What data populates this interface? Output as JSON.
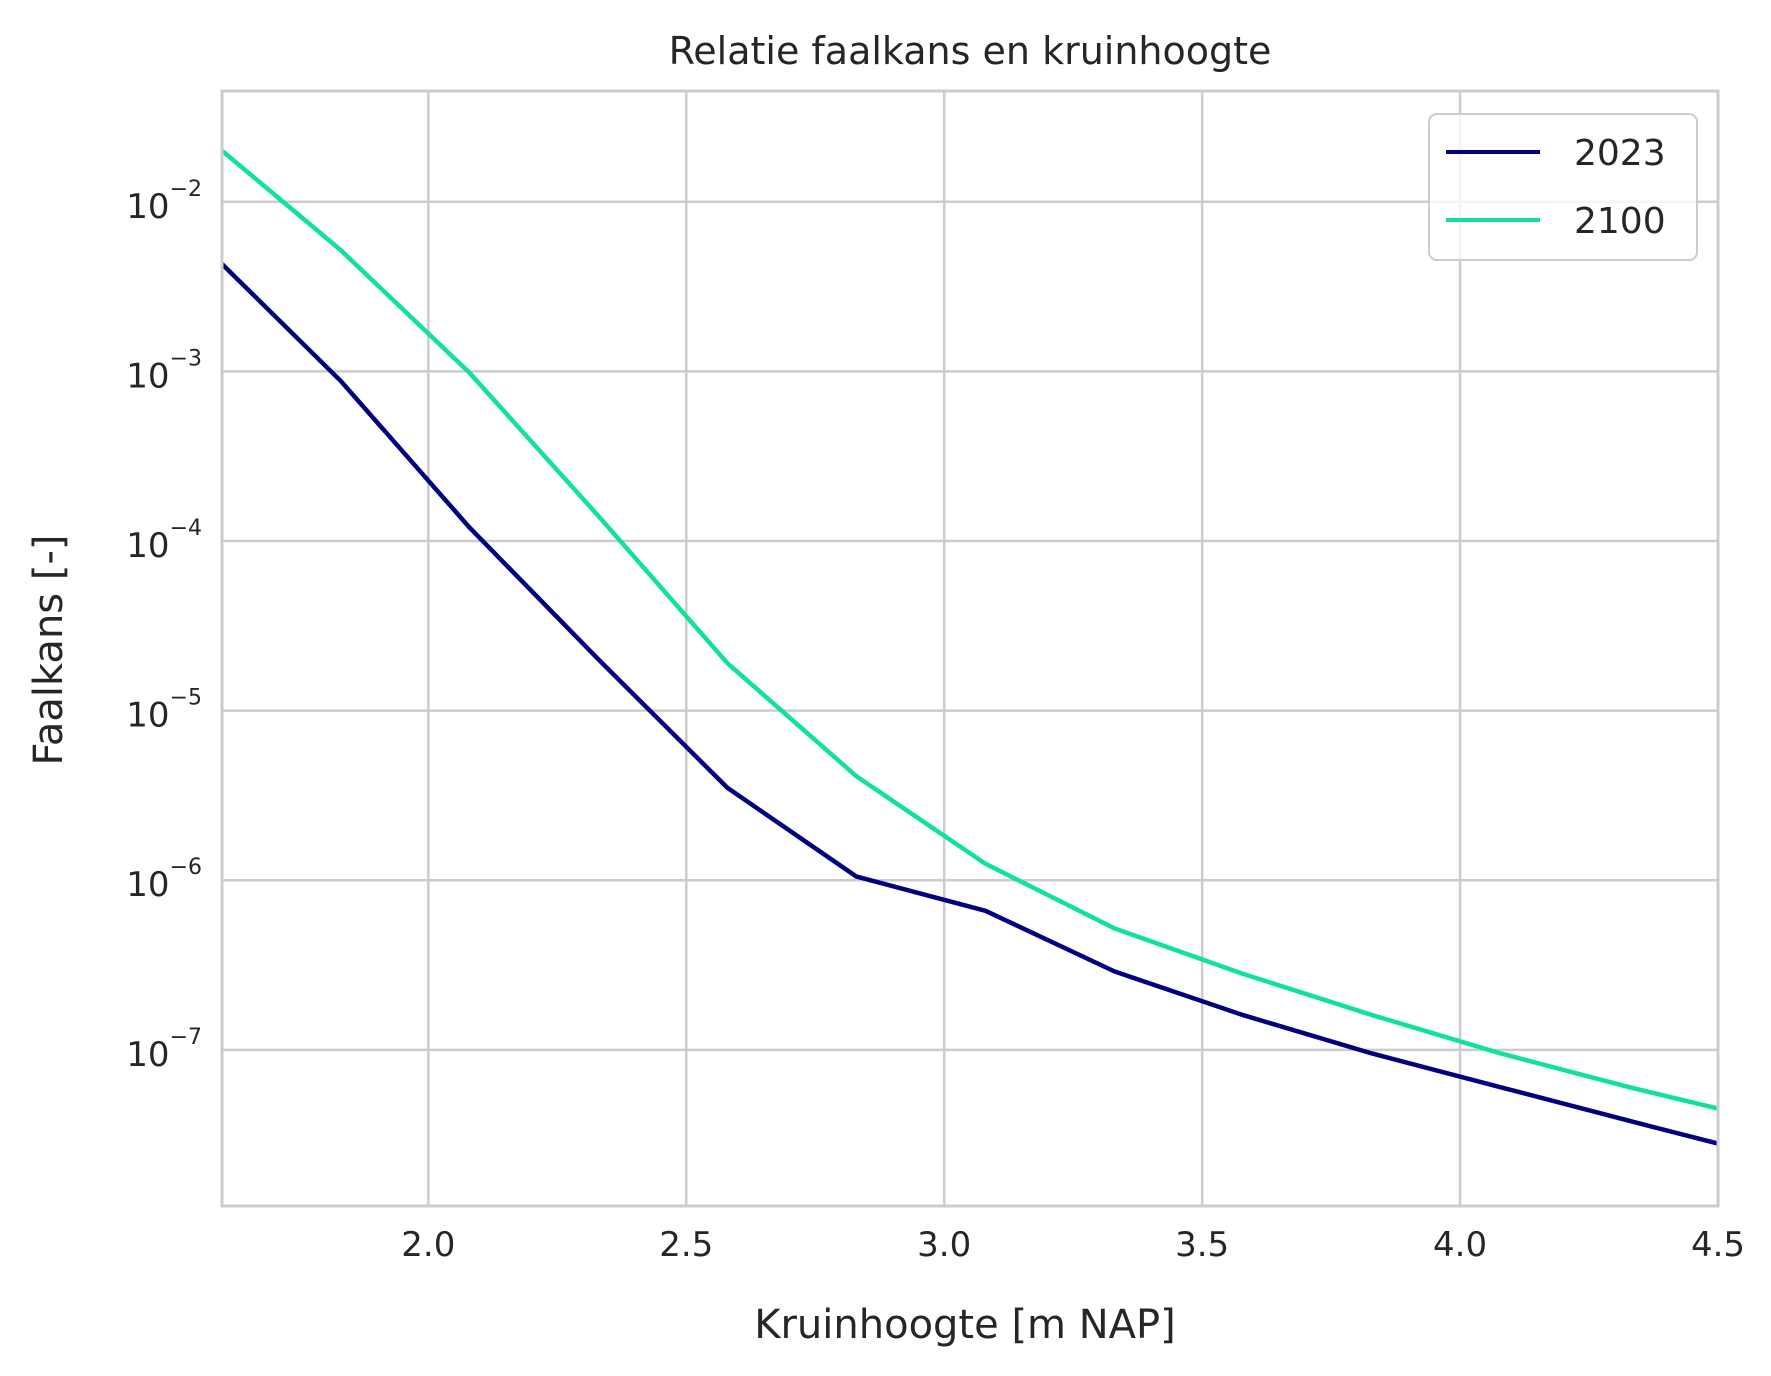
{
  "chart_data": {
    "type": "line",
    "title": "Relatie faalkans en kruinhoogte",
    "xlabel": "Kruinhoogte [m NAP]",
    "ylabel": "Faalkans [-]",
    "xlim": [
      1.6,
      4.5
    ],
    "ylim": [
      1.2e-08,
      0.045
    ],
    "yscale": "log",
    "grid": true,
    "legend": "top-right",
    "xticks": [
      2.0,
      2.5,
      3.0,
      3.5,
      4.0,
      4.5
    ],
    "xtick_labels": [
      "2.0",
      "2.5",
      "3.0",
      "3.5",
      "4.0",
      "4.5"
    ],
    "yticks": [
      0.01,
      0.001,
      0.0001,
      1e-05,
      1e-06,
      1e-07
    ],
    "ytick_base": "10",
    "ytick_exponents": [
      "−2",
      "−3",
      "−4",
      "−5",
      "−6",
      "−7"
    ],
    "x": [
      1.6,
      1.83,
      2.08,
      2.33,
      2.58,
      2.83,
      3.08,
      3.33,
      3.58,
      3.83,
      4.08,
      4.33,
      4.5
    ],
    "series": [
      {
        "name": "2023",
        "color": "#000080",
        "values": [
          0.0043,
          0.00088,
          0.00012,
          2e-05,
          3.5e-06,
          1.05e-06,
          6.6e-07,
          2.9e-07,
          1.6e-07,
          9.5e-08,
          6e-08,
          3.8e-08,
          2.8e-08
        ]
      },
      {
        "name": "2100",
        "color": "#10e0a0",
        "values": [
          0.02,
          0.0052,
          0.00098,
          0.00014,
          1.9e-05,
          4.1e-06,
          1.25e-06,
          5.2e-07,
          2.8e-07,
          1.6e-07,
          9.5e-08,
          6e-08,
          4.5e-08
        ]
      }
    ]
  }
}
